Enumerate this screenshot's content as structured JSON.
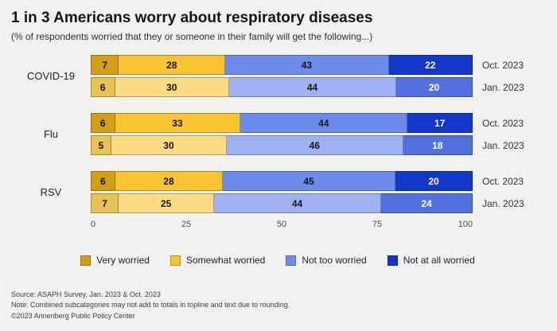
{
  "title": "1 in 3 Americans worry about respiratory diseases",
  "subtitle": "(% of respondents worried that they or someone in their family will get the following...)",
  "chart_data": {
    "type": "bar",
    "orientation": "horizontal",
    "stacked": true,
    "title": "1 in 3 Americans worry about respiratory diseases",
    "xlabel": "",
    "ylabel": "",
    "xlim": [
      0,
      100
    ],
    "x_ticks": [
      0,
      25,
      50,
      75,
      100
    ],
    "grid": false,
    "legend_position": "bottom",
    "series": [
      "Very worried",
      "Somewhat worried",
      "Not too worried",
      "Not at all worried"
    ],
    "colors": {
      "oct": [
        "#d29e13",
        "#f9c432",
        "#6c8cec",
        "#1336cb"
      ],
      "jan": [
        "#e9c255",
        "#fbdc85",
        "#9fb1f0",
        "#5370e0"
      ]
    },
    "groups": [
      {
        "label": "COVID-19",
        "rows": [
          {
            "period": "Oct. 2023",
            "palette": "oct",
            "values": [
              7,
              28,
              43,
              22
            ]
          },
          {
            "period": "Jan. 2023",
            "palette": "jan",
            "values": [
              6,
              30,
              44,
              20
            ]
          }
        ]
      },
      {
        "label": "Flu",
        "rows": [
          {
            "period": "Oct. 2023",
            "palette": "oct",
            "values": [
              6,
              33,
              44,
              17
            ]
          },
          {
            "period": "Jan. 2023",
            "palette": "jan",
            "values": [
              5,
              30,
              46,
              18
            ]
          }
        ]
      },
      {
        "label": "RSV",
        "rows": [
          {
            "period": "Oct. 2023",
            "palette": "oct",
            "values": [
              6,
              28,
              45,
              20
            ]
          },
          {
            "period": "Jan. 2023",
            "palette": "jan",
            "values": [
              7,
              25,
              44,
              24
            ]
          }
        ]
      }
    ]
  },
  "footnotes": [
    "Source: ASAPH Survey, Jan. 2023 & Oct. 2023",
    "Note: Combined subcategories may not add to totals in topline and text due to rounding.",
    "©2023 Annenberg Public Policy Center"
  ]
}
